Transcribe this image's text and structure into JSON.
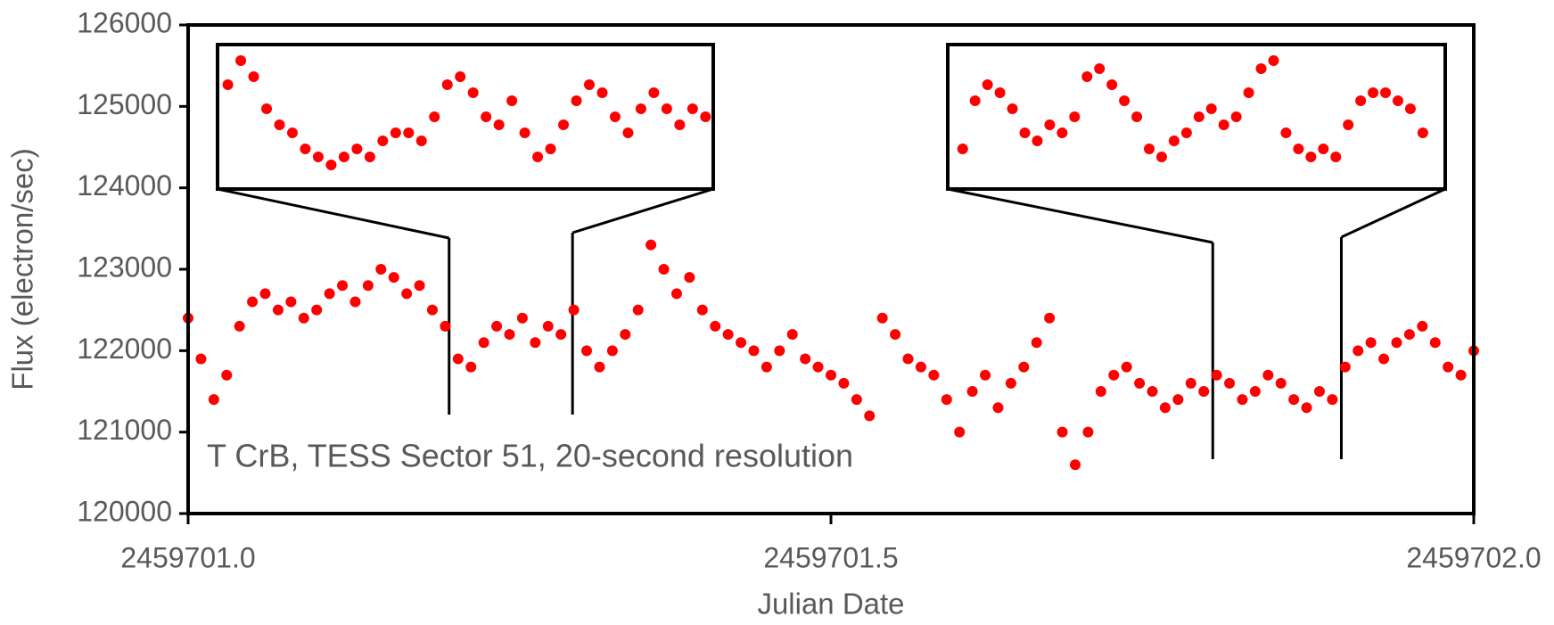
{
  "chart_data": [
    {
      "type": "scatter",
      "x_label": "Julian Date",
      "y_label": "Flux (electron/sec)",
      "annotation": "T CrB, TESS Sector 51, 20-second resolution",
      "color": "#ff0000",
      "xlim": [
        2459701.0,
        2459702.0
      ],
      "ylim": [
        120000,
        126000
      ],
      "xticks": [
        {
          "value": 2459701.0,
          "label": "2459701.0"
        },
        {
          "value": 2459701.5,
          "label": "2459701.5"
        },
        {
          "value": 2459702.0,
          "label": "2459702.0"
        }
      ],
      "yticks": [
        120000,
        121000,
        122000,
        123000,
        124000,
        125000,
        126000
      ],
      "x": [
        2459701.0,
        2459701.01,
        2459701.02,
        2459701.03,
        2459701.04,
        2459701.05,
        2459701.06,
        2459701.07,
        2459701.08,
        2459701.09,
        2459701.1,
        2459701.11,
        2459701.12,
        2459701.13,
        2459701.14,
        2459701.15,
        2459701.16,
        2459701.17,
        2459701.18,
        2459701.19,
        2459701.2,
        2459701.21,
        2459701.22,
        2459701.23,
        2459701.24,
        2459701.25,
        2459701.26,
        2459701.27,
        2459701.28,
        2459701.29,
        2459701.3,
        2459701.31,
        2459701.32,
        2459701.33,
        2459701.34,
        2459701.35,
        2459701.36,
        2459701.37,
        2459701.38,
        2459701.39,
        2459701.4,
        2459701.41,
        2459701.42,
        2459701.43,
        2459701.44,
        2459701.45,
        2459701.46,
        2459701.47,
        2459701.48,
        2459701.49,
        2459701.5,
        2459701.51,
        2459701.52,
        2459701.53,
        2459701.54,
        2459701.55,
        2459701.56,
        2459701.57,
        2459701.58,
        2459701.59,
        2459701.6,
        2459701.61,
        2459701.62,
        2459701.63,
        2459701.64,
        2459701.65,
        2459701.66,
        2459701.67,
        2459701.68,
        2459701.69,
        2459701.7,
        2459701.71,
        2459701.72,
        2459701.73,
        2459701.74,
        2459701.75,
        2459701.76,
        2459701.77,
        2459701.78,
        2459701.79,
        2459701.8,
        2459701.81,
        2459701.82,
        2459701.83,
        2459701.84,
        2459701.85,
        2459701.86,
        2459701.87,
        2459701.88,
        2459701.89,
        2459701.9,
        2459701.91,
        2459701.92,
        2459701.93,
        2459701.94,
        2459701.95,
        2459701.96,
        2459701.97,
        2459701.98,
        2459701.99,
        2459702.0
      ],
      "values": [
        122400,
        121900,
        121400,
        121700,
        122300,
        122600,
        122700,
        122500,
        122600,
        122400,
        122500,
        122700,
        122800,
        122600,
        122800,
        123000,
        122900,
        122700,
        122800,
        122500,
        122300,
        121900,
        121800,
        122100,
        122300,
        122200,
        122400,
        122100,
        122300,
        122200,
        122500,
        122000,
        121800,
        122000,
        122200,
        122500,
        123300,
        123000,
        122700,
        122900,
        122500,
        122300,
        122200,
        122100,
        122000,
        121800,
        122000,
        122200,
        121900,
        121800,
        121700,
        121600,
        121400,
        121200,
        122400,
        122200,
        121900,
        121800,
        121700,
        121400,
        121000,
        121500,
        121700,
        121300,
        121600,
        121800,
        122100,
        122400,
        121000,
        120600,
        121000,
        121500,
        121700,
        121800,
        121600,
        121500,
        121300,
        121400,
        121600,
        121500,
        121700,
        121600,
        121400,
        121500,
        121700,
        121600,
        121400,
        121300,
        121500,
        121400,
        121800,
        122000,
        122100,
        121900,
        122100,
        122200,
        122300,
        122100,
        121800,
        121700,
        122000
      ]
    },
    {
      "type": "scatter",
      "color": "#ff0000",
      "xlim": [
        2459701.203,
        2459701.299
      ],
      "ylim": [
        121300,
        123100
      ],
      "x": [
        2459701.205,
        2459701.2075,
        2459701.21,
        2459701.2125,
        2459701.215,
        2459701.2175,
        2459701.22,
        2459701.2225,
        2459701.225,
        2459701.2275,
        2459701.23,
        2459701.2325,
        2459701.235,
        2459701.2375,
        2459701.24,
        2459701.2425,
        2459701.245,
        2459701.2475,
        2459701.25,
        2459701.2525,
        2459701.255,
        2459701.2575,
        2459701.26,
        2459701.2625,
        2459701.265,
        2459701.2675,
        2459701.27,
        2459701.2725,
        2459701.275,
        2459701.2775,
        2459701.28,
        2459701.2825,
        2459701.285,
        2459701.2875,
        2459701.29,
        2459701.2925,
        2459701.295,
        2459701.2975
      ],
      "values": [
        122600,
        122900,
        122700,
        122300,
        122100,
        122000,
        121800,
        121700,
        121600,
        121700,
        121800,
        121700,
        121900,
        122000,
        122000,
        121900,
        122200,
        122600,
        122700,
        122500,
        122200,
        122100,
        122400,
        122000,
        121700,
        121800,
        122100,
        122400,
        122600,
        122500,
        122200,
        122000,
        122300,
        122500,
        122300,
        122100,
        122300,
        122200
      ]
    },
    {
      "type": "scatter",
      "color": "#ff0000",
      "xlim": [
        2459701.797,
        2459701.897
      ],
      "ylim": [
        121300,
        123100
      ],
      "x": [
        2459701.8,
        2459701.8025,
        2459701.805,
        2459701.8075,
        2459701.81,
        2459701.8125,
        2459701.815,
        2459701.8175,
        2459701.82,
        2459701.8225,
        2459701.825,
        2459701.8275,
        2459701.83,
        2459701.8325,
        2459701.835,
        2459701.8375,
        2459701.84,
        2459701.8425,
        2459701.845,
        2459701.8475,
        2459701.85,
        2459701.8525,
        2459701.855,
        2459701.8575,
        2459701.86,
        2459701.8625,
        2459701.865,
        2459701.8675,
        2459701.87,
        2459701.8725,
        2459701.875,
        2459701.8775,
        2459701.88,
        2459701.8825,
        2459701.885,
        2459701.8875,
        2459701.89,
        2459701.8925
      ],
      "values": [
        121800,
        122400,
        122600,
        122500,
        122300,
        122000,
        121900,
        122100,
        122000,
        122200,
        122700,
        122800,
        122600,
        122400,
        122200,
        121800,
        121700,
        121900,
        122000,
        122200,
        122300,
        122100,
        122200,
        122500,
        122800,
        122900,
        122000,
        121800,
        121700,
        121800,
        121700,
        122100,
        122400,
        122500,
        122500,
        122400,
        122300,
        122000
      ]
    }
  ]
}
